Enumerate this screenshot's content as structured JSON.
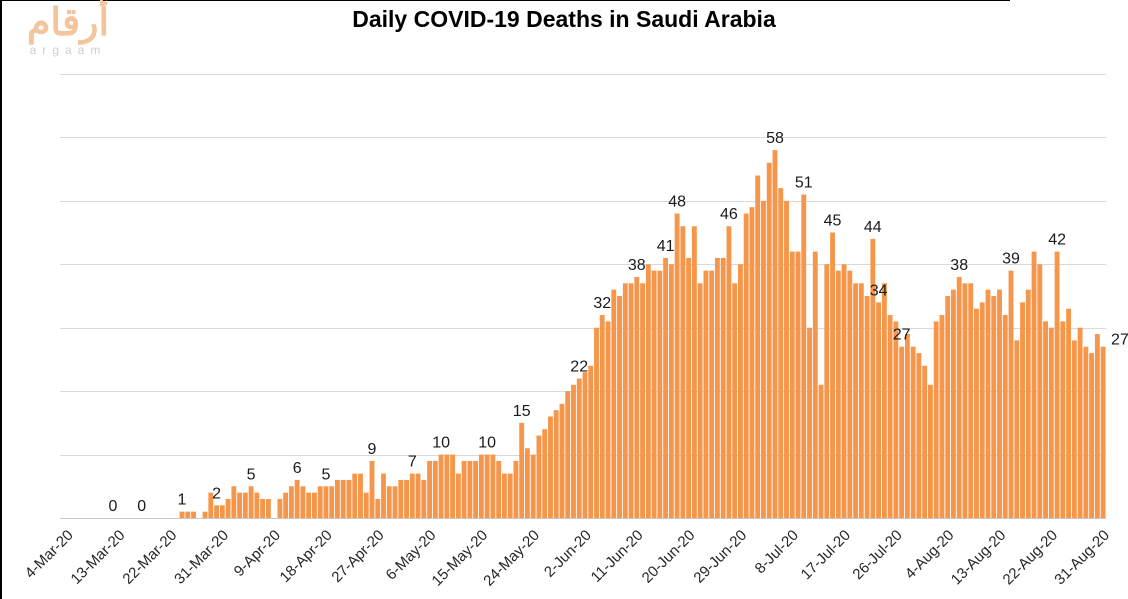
{
  "logo": {
    "arabic": "أرقام",
    "latin": "argaam",
    "arabic_color": "#F4C49D",
    "latin_color": "#CFCFCF"
  },
  "chart_data": {
    "type": "bar",
    "title": "Daily COVID-19 Deaths in Saudi Arabia",
    "xlabel": "",
    "ylabel": "",
    "legend": "none",
    "grid": "horizontal",
    "ylim": [
      0,
      70
    ],
    "grid_step": 10,
    "y_axis_tick_labels_visible": false,
    "x_tick_labels": [
      "4-Mar-20",
      "13-Mar-20",
      "22-Mar-20",
      "31-Mar-20",
      "9-Apr-20",
      "18-Apr-20",
      "27-Apr-20",
      "6-May-20",
      "15-May-20",
      "24-May-20",
      "2-Jun-20",
      "11-Jun-20",
      "20-Jun-20",
      "29-Jun-20",
      "8-Jul-20",
      "17-Jul-20",
      "26-Jul-20",
      "4-Aug-20",
      "13-Aug-20",
      "22-Aug-20",
      "31-Aug-20"
    ],
    "x_tick_every_n_bars": 9,
    "values": [
      0,
      0,
      0,
      0,
      0,
      0,
      0,
      0,
      0,
      0,
      0,
      0,
      0,
      0,
      0,
      0,
      0,
      0,
      0,
      0,
      1,
      1,
      1,
      0,
      1,
      4,
      2,
      2,
      3,
      5,
      4,
      4,
      5,
      4,
      3,
      3,
      0,
      3,
      4,
      5,
      6,
      5,
      4,
      4,
      5,
      5,
      5,
      6,
      6,
      6,
      7,
      7,
      4,
      9,
      3,
      7,
      5,
      5,
      6,
      6,
      7,
      7,
      6,
      9,
      9,
      10,
      10,
      10,
      7,
      9,
      9,
      9,
      10,
      10,
      10,
      9,
      7,
      7,
      9,
      15,
      11,
      10,
      13,
      14,
      16,
      17,
      18,
      20,
      21,
      22,
      23,
      24,
      30,
      32,
      31,
      36,
      35,
      37,
      37,
      38,
      37,
      40,
      39,
      39,
      41,
      40,
      48,
      46,
      41,
      46,
      37,
      39,
      39,
      41,
      41,
      46,
      37,
      40,
      48,
      49,
      54,
      50,
      56,
      58,
      52,
      50,
      42,
      42,
      51,
      30,
      42,
      21,
      40,
      45,
      39,
      40,
      39,
      37,
      37,
      35,
      44,
      34,
      37,
      32,
      31,
      27,
      29,
      27,
      26,
      24,
      21,
      31,
      32,
      35,
      36,
      38,
      37,
      37,
      33,
      34,
      36,
      35,
      36,
      32,
      39,
      28,
      34,
      36,
      42,
      40,
      31,
      30,
      42,
      31,
      33,
      28,
      30,
      27,
      26,
      29,
      27
    ],
    "point_labels": [
      {
        "index": 8,
        "value": "0"
      },
      {
        "index": 13,
        "value": "0"
      },
      {
        "index": 20,
        "value": "1"
      },
      {
        "index": 26,
        "value": "2"
      },
      {
        "index": 32,
        "value": "5"
      },
      {
        "index": 40,
        "value": "6"
      },
      {
        "index": 45,
        "value": "5"
      },
      {
        "index": 53,
        "value": "9"
      },
      {
        "index": 60,
        "value": "7"
      },
      {
        "index": 65,
        "value": "10"
      },
      {
        "index": 73,
        "value": "10"
      },
      {
        "index": 79,
        "value": "15"
      },
      {
        "index": 89,
        "value": "22"
      },
      {
        "index": 93,
        "value": "32"
      },
      {
        "index": 99,
        "value": "38"
      },
      {
        "index": 104,
        "value": "41"
      },
      {
        "index": 106,
        "value": "48"
      },
      {
        "index": 115,
        "value": "46"
      },
      {
        "index": 123,
        "value": "58"
      },
      {
        "index": 128,
        "value": "51"
      },
      {
        "index": 133,
        "value": "45"
      },
      {
        "index": 140,
        "value": "44"
      },
      {
        "index": 141,
        "value": "34"
      },
      {
        "index": 145,
        "value": "27"
      },
      {
        "index": 155,
        "value": "38"
      },
      {
        "index": 164,
        "value": "39"
      },
      {
        "index": 172,
        "value": "42"
      },
      {
        "index": 180,
        "value": "27"
      }
    ],
    "bar_color": "#F5964A",
    "gridline_color": "#D9D9D9",
    "axis_line_color": "#C9C9C9",
    "point_label_color": "#1A1A1A",
    "tick_label_color": "#262626",
    "title_color": "#000000"
  }
}
